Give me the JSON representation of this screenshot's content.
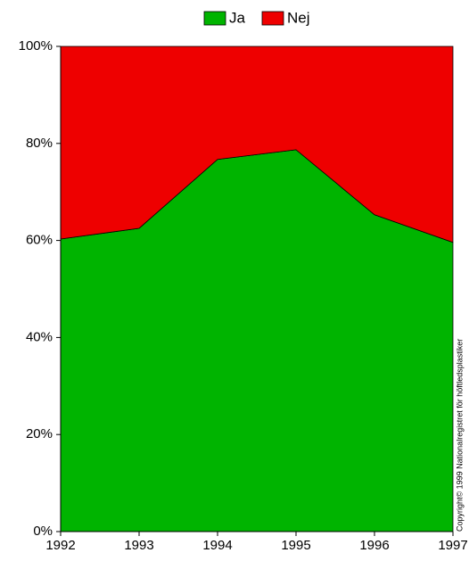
{
  "chart_data": {
    "type": "area",
    "stacked": true,
    "x": [
      1992,
      1993,
      1994,
      1995,
      1996,
      1997
    ],
    "xlim": [
      1992,
      1997
    ],
    "xticks": [
      1992,
      1993,
      1994,
      1995,
      1996,
      1997
    ],
    "ylim": [
      0,
      100
    ],
    "yticks": [
      {
        "value": 0,
        "label": "0%"
      },
      {
        "value": 20,
        "label": "20%"
      },
      {
        "value": 40,
        "label": "40%"
      },
      {
        "value": 60,
        "label": "60%"
      },
      {
        "value": 80,
        "label": "80%"
      },
      {
        "value": 100,
        "label": "100%"
      }
    ],
    "series": [
      {
        "name": "Ja",
        "color": "#00b400",
        "values": [
          60.3,
          62.5,
          76.7,
          78.7,
          65.3,
          59.6
        ]
      },
      {
        "name": "Nej",
        "color": "#ee0000",
        "values": [
          39.7,
          37.5,
          23.3,
          21.3,
          34.7,
          40.4
        ]
      }
    ],
    "legend": "top",
    "annotation": "Copyright© 1999 Nationalregistret för höftledsplastiker"
  }
}
